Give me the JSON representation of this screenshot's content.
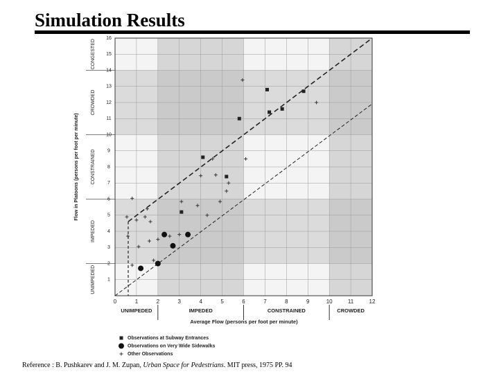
{
  "chart_data": {
    "type": "scatter",
    "title": "Simulation Results",
    "x_label": "Average Flow (persons per foot per minute)",
    "y_label": "Flow in Platoons (persons per foot per minute)",
    "xlim": [
      0,
      12
    ],
    "ylim": [
      0,
      16
    ],
    "xticks": [
      0,
      1,
      2,
      3,
      4,
      5,
      6,
      7,
      8,
      9,
      10,
      11,
      12
    ],
    "yticks": [
      1,
      2,
      3,
      4,
      5,
      6,
      7,
      8,
      9,
      10,
      11,
      12,
      13,
      14,
      15,
      16
    ],
    "grid": true,
    "x_zones": [
      {
        "label": "UNIMPEDED",
        "from": 0,
        "to": 2
      },
      {
        "label": "IMPEDED",
        "from": 2,
        "to": 6
      },
      {
        "label": "CONSTRAINED",
        "from": 6,
        "to": 10
      },
      {
        "label": "CROWDED",
        "from": 10,
        "to": 12
      }
    ],
    "y_zones": [
      {
        "label": "UNIMPEDED",
        "from": 0,
        "to": 2
      },
      {
        "label": "IMPEDED",
        "from": 2,
        "to": 6
      },
      {
        "label": "CONSTRAINED",
        "from": 6,
        "to": 10
      },
      {
        "label": "CROWDED",
        "from": 10,
        "to": 14
      },
      {
        "label": "CONGESTED",
        "from": 14,
        "to": 16
      }
    ],
    "series": [
      {
        "name": "Observations at Subway Entrances",
        "marker": "square",
        "color": "#222222",
        "x": [
          5.8,
          7.1,
          7.2,
          7.8,
          8.8,
          4.1,
          5.2,
          3.1
        ],
        "values": [
          11.0,
          12.8,
          11.4,
          11.6,
          12.7,
          8.6,
          7.4,
          5.2
        ]
      },
      {
        "name": "Observations on Very Wide Sidewalks",
        "marker": "circle",
        "color": "#111111",
        "x": [
          1.2,
          2.0,
          2.3,
          2.7,
          3.4
        ],
        "values": [
          1.7,
          2.0,
          3.8,
          3.1,
          3.8
        ]
      },
      {
        "name": "Other Observations",
        "marker": "plus",
        "color": "#333333",
        "x": [
          0.55,
          1.0,
          1.4,
          1.5,
          1.65,
          0.6,
          1.1,
          1.6,
          2.0,
          1.8,
          0.8,
          2.55,
          3.0,
          3.1,
          3.85,
          4.0,
          4.55,
          4.7,
          5.2,
          5.3,
          6.1,
          4.3,
          4.9,
          5.95,
          9.4,
          0.8
        ],
        "values": [
          4.9,
          4.7,
          4.9,
          5.4,
          4.6,
          3.7,
          3.05,
          3.4,
          3.5,
          2.2,
          1.9,
          3.7,
          3.8,
          5.85,
          5.6,
          7.45,
          8.5,
          7.5,
          6.5,
          7.0,
          8.5,
          5.0,
          5.85,
          13.4,
          12.0,
          6.05
        ]
      }
    ],
    "reference": {
      "prefix": "Reference : B. Pushkarev and J. M. Zupan, ",
      "book": "Urban Space for Pedestrians",
      "suffix": ". MIT press, 1975   PP. 94"
    }
  }
}
